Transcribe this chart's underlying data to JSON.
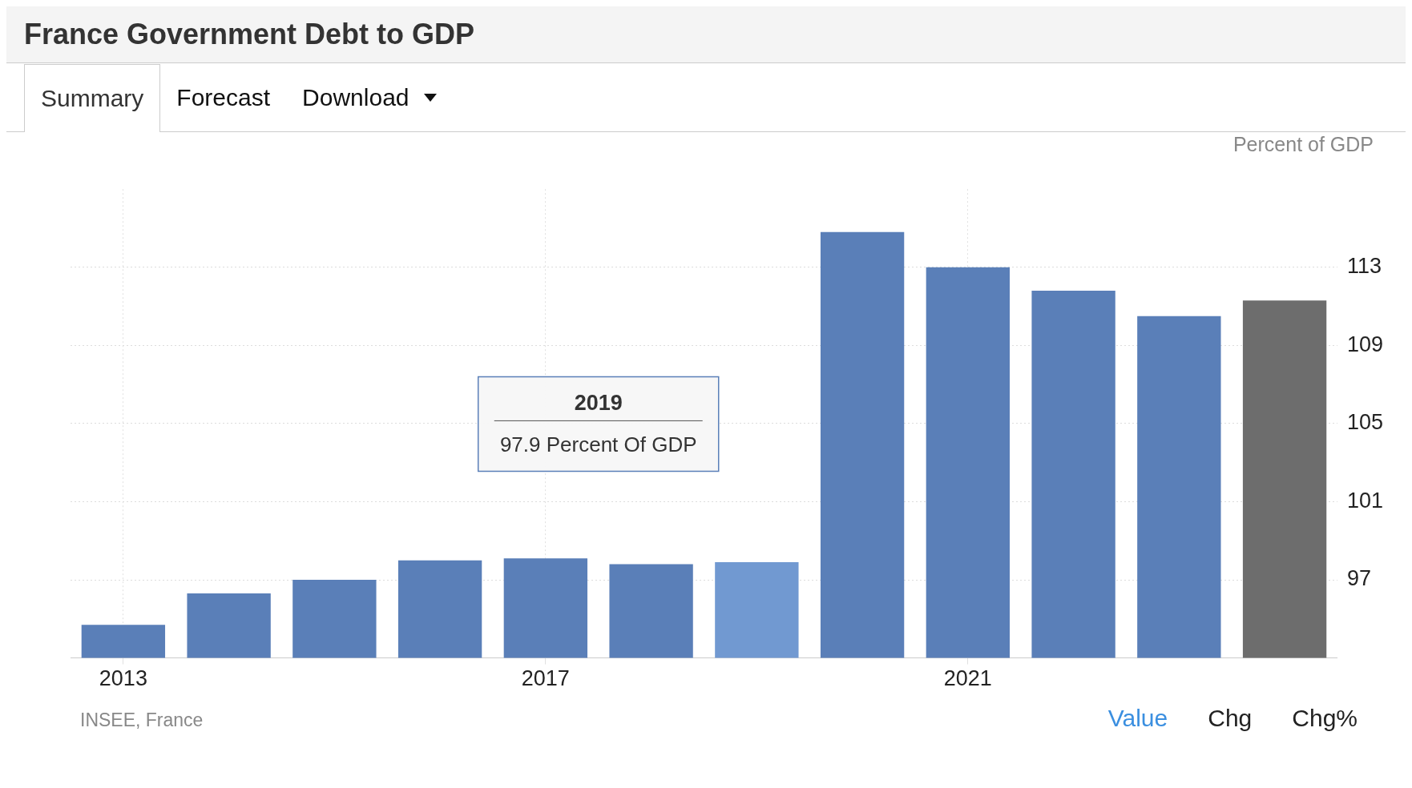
{
  "chart_data": {
    "type": "bar",
    "title": "France Government Debt to GDP",
    "ylabel": "Percent of GDP",
    "categories": [
      "2013",
      null,
      null,
      null,
      "2017",
      null,
      null,
      null,
      "2021",
      null,
      null,
      null
    ],
    "values": [
      94.7,
      96.3,
      97.0,
      98.0,
      98.1,
      97.8,
      97.9,
      114.8,
      113.0,
      111.8,
      110.5,
      111.3
    ],
    "colors": [
      "#5a7fb8",
      "#5a7fb8",
      "#5a7fb8",
      "#5a7fb8",
      "#5a7fb8",
      "#5a7fb8",
      "#7199d1",
      "#5a7fb8",
      "#5a7fb8",
      "#5a7fb8",
      "#5a7fb8",
      "#6d6d6d"
    ],
    "ylim": [
      93,
      117
    ],
    "yticks": [
      97,
      101,
      105,
      109,
      113
    ],
    "grid": true,
    "annotations": [
      "Summary",
      "Forecast",
      "Download",
      "INSEE, France",
      "Value",
      "Chg",
      "Chg%",
      "2019",
      "97.9 Percent Of GDP"
    ]
  }
}
